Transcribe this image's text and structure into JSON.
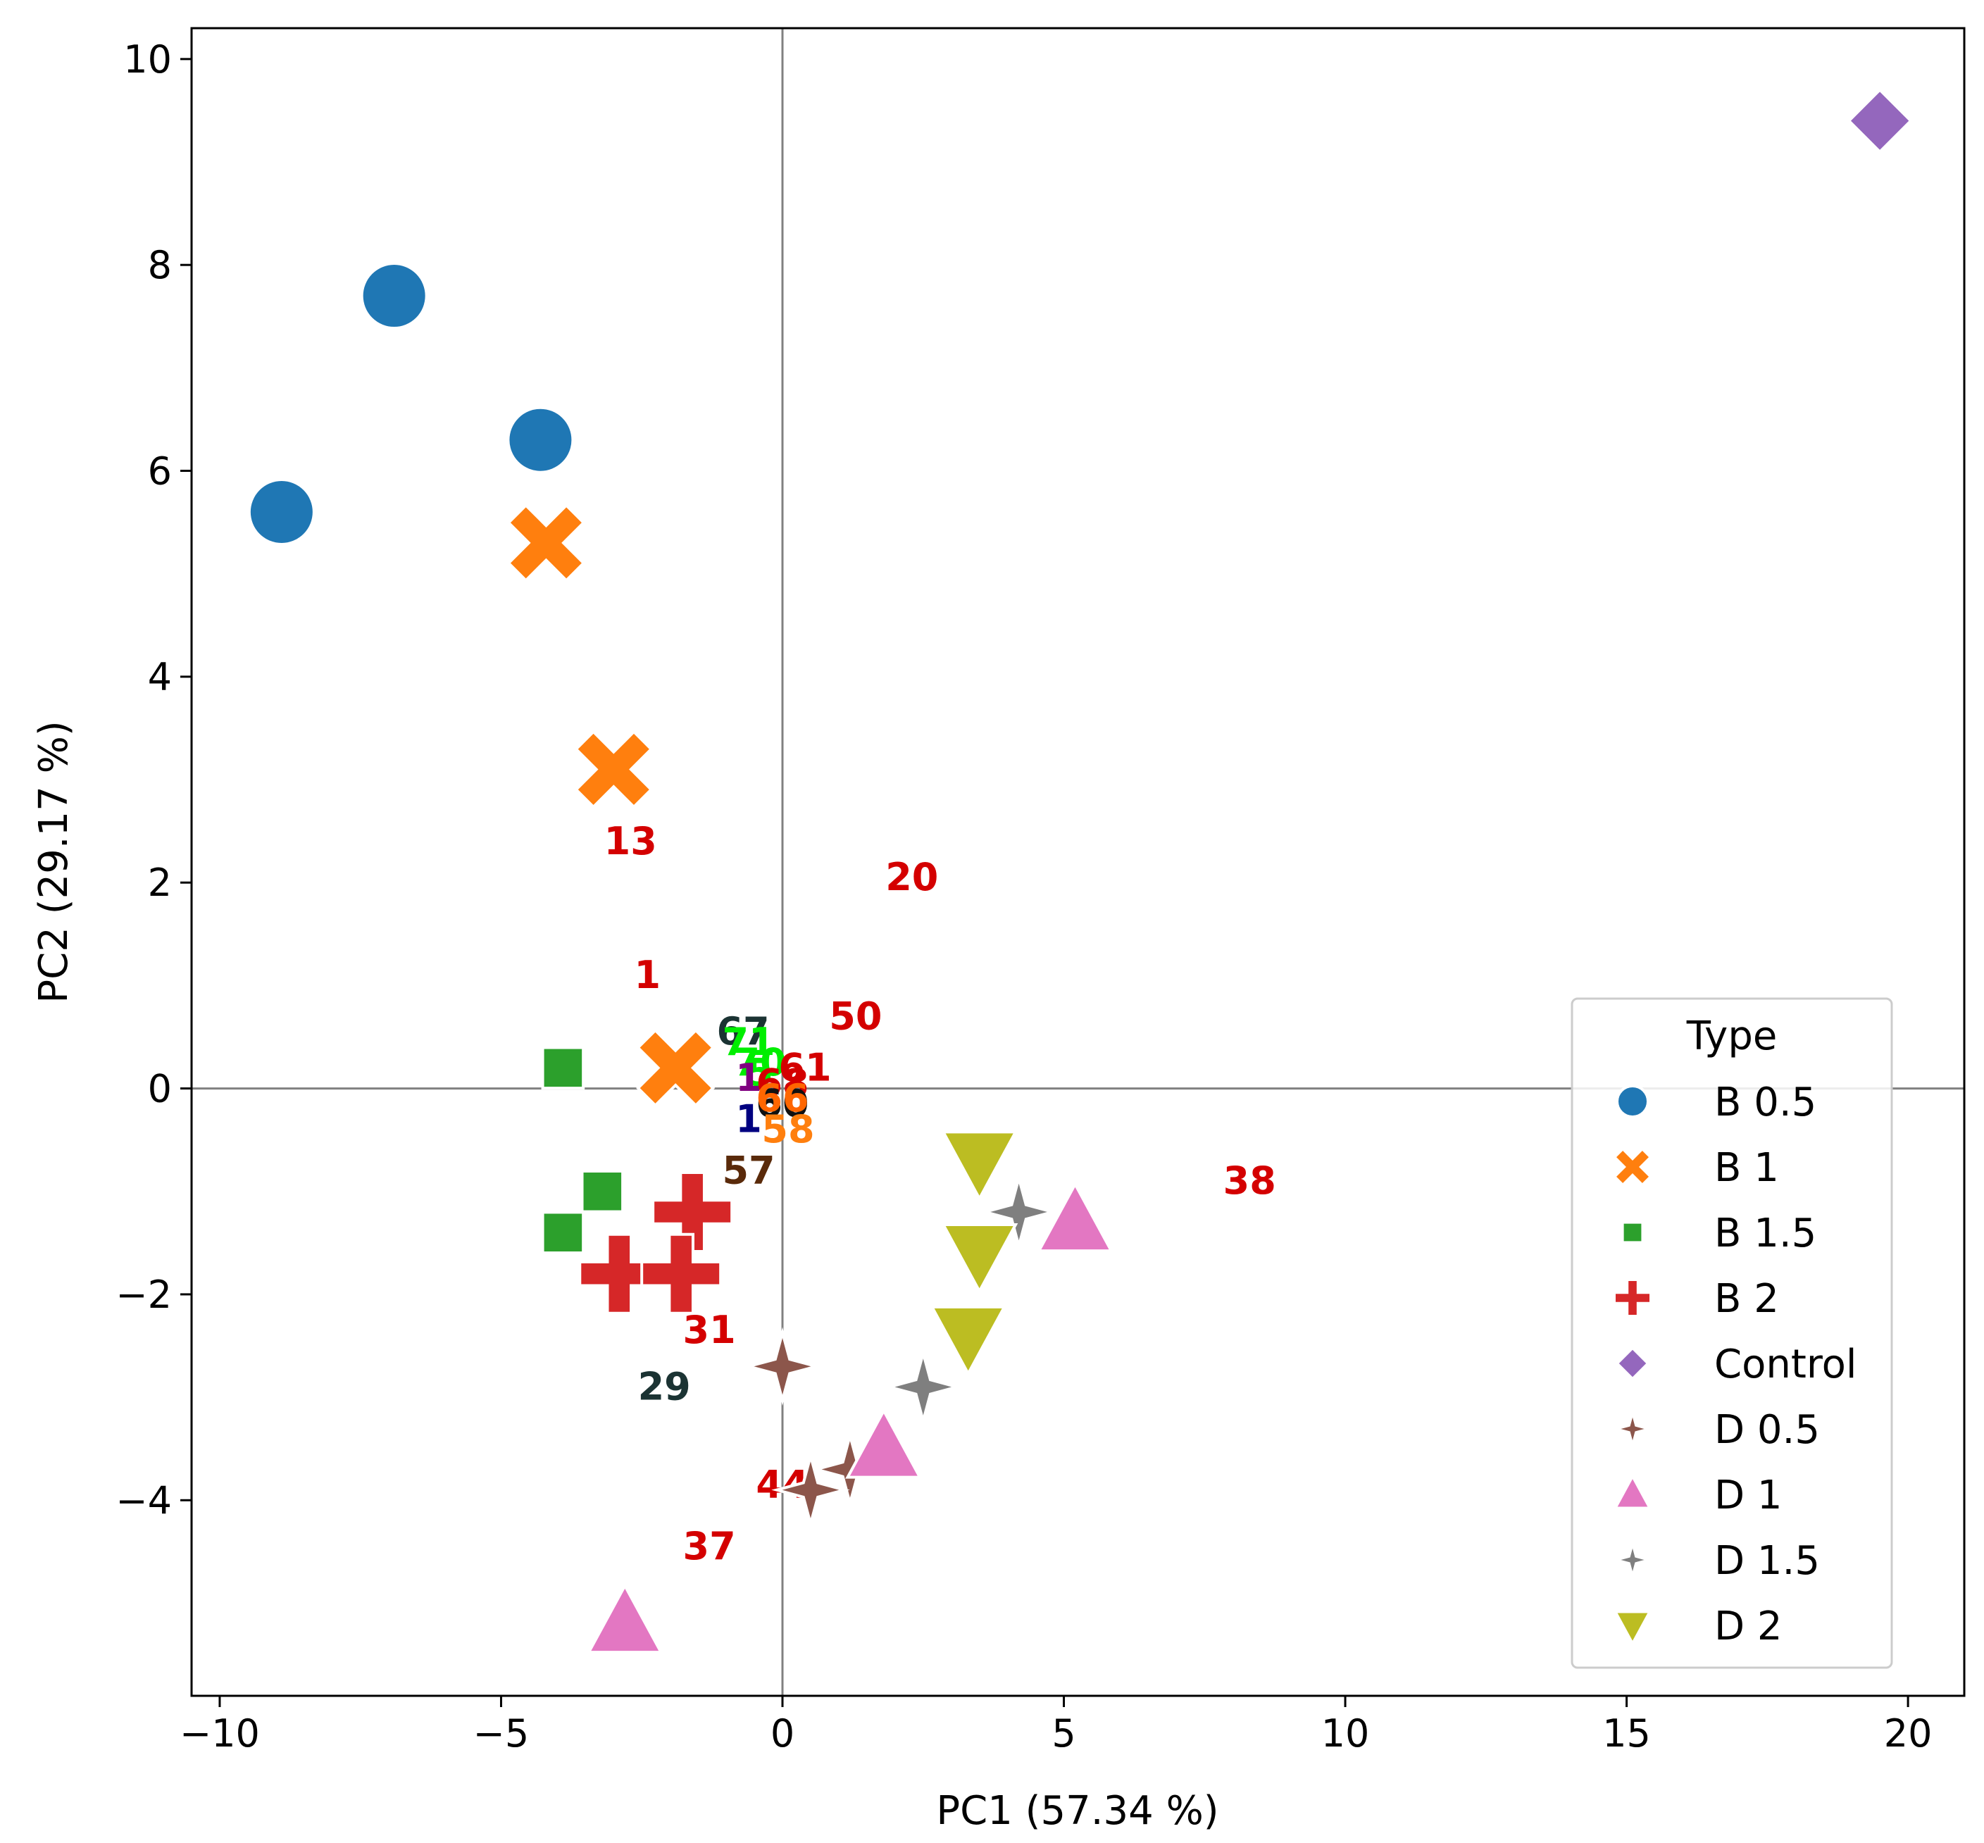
{
  "chart_data": {
    "type": "scatter",
    "xlabel": "PC1 (57.34 %)",
    "ylabel": "PC2 (29.17 %)",
    "xlim": [
      -10.5,
      21
    ],
    "ylim": [
      -5.9,
      10.3
    ],
    "xticks": [
      -10,
      -5,
      0,
      5,
      10,
      15,
      20
    ],
    "xtick_labels": [
      "−10",
      "−5",
      "0",
      "5",
      "10",
      "15",
      "20"
    ],
    "yticks": [
      -4,
      -2,
      0,
      2,
      4,
      6,
      8,
      10
    ],
    "ytick_labels": [
      "−4",
      "−2",
      "0",
      "2",
      "4",
      "6",
      "8",
      "10"
    ],
    "reference_lines": {
      "x": 0,
      "y": 0
    },
    "legend": {
      "title": "Type",
      "position": "lower-right"
    },
    "series": [
      {
        "name": "B 0.5",
        "marker": "circle",
        "color": "#1f77b4",
        "points": [
          [
            -8.9,
            5.6
          ],
          [
            -6.9,
            7.7
          ],
          [
            -4.3,
            6.3
          ]
        ]
      },
      {
        "name": "B 1",
        "marker": "x",
        "color": "#ff7f0e",
        "points": [
          [
            -4.2,
            5.3
          ],
          [
            -3.0,
            3.1
          ],
          [
            -1.9,
            0.2
          ]
        ]
      },
      {
        "name": "B 1.5",
        "marker": "square",
        "color": "#2ca02c",
        "points": [
          [
            -3.9,
            0.2
          ],
          [
            -3.2,
            -1.0
          ],
          [
            -3.9,
            -1.4
          ]
        ]
      },
      {
        "name": "B 2",
        "marker": "plus",
        "color": "#d62728",
        "points": [
          [
            -1.6,
            -1.2
          ],
          [
            -2.9,
            -1.8
          ],
          [
            -1.8,
            -1.8
          ]
        ]
      },
      {
        "name": "Control",
        "marker": "diamond",
        "color": "#9467bd",
        "points": [
          [
            19.5,
            9.4
          ]
        ]
      },
      {
        "name": "D 0.5",
        "marker": "star4",
        "color": "#8c564b",
        "points": [
          [
            0.0,
            -2.7
          ],
          [
            1.2,
            -3.7
          ],
          [
            0.5,
            -3.9
          ]
        ]
      },
      {
        "name": "D 1",
        "marker": "triangle-up",
        "color": "#e377c2",
        "points": [
          [
            5.2,
            -1.3
          ],
          [
            1.8,
            -3.5
          ],
          [
            -2.8,
            -5.2
          ]
        ]
      },
      {
        "name": "D 1.5",
        "marker": "star4",
        "color": "#7f7f7f",
        "points": [
          [
            4.2,
            -1.2
          ],
          [
            2.5,
            -2.9
          ]
        ]
      },
      {
        "name": "D 2",
        "marker": "triangle-down",
        "color": "#bcbd22",
        "points": [
          [
            3.5,
            -0.7
          ],
          [
            3.5,
            -1.6
          ],
          [
            3.3,
            -2.4
          ]
        ]
      }
    ],
    "annotations": [
      {
        "text": "13",
        "x": -2.7,
        "y": 4.8,
        "color": "#d40000"
      },
      {
        "text": "20",
        "x": 2.3,
        "y": 4.1,
        "color": "#d40000"
      },
      {
        "text": "1",
        "x": -2.4,
        "y": 2.2,
        "color": "#d40000"
      },
      {
        "text": "50",
        "x": 1.3,
        "y": 1.4,
        "color": "#d40000"
      },
      {
        "text": "67",
        "x": -0.7,
        "y": 1.1,
        "color": "#1b3333"
      },
      {
        "text": "71",
        "x": -0.6,
        "y": 0.9,
        "color": "#00ee00"
      },
      {
        "text": "70",
        "x": -0.4,
        "y": 0.5,
        "color": "#00ee00"
      },
      {
        "text": "61",
        "x": 0.4,
        "y": 0.4,
        "color": "#d40000"
      },
      {
        "text": "5",
        "x": -0.4,
        "y": 0.3,
        "color": "#00ee00"
      },
      {
        "text": "1",
        "x": -0.6,
        "y": 0.2,
        "color": "#800080"
      },
      {
        "text": "68",
        "x": 0.0,
        "y": 0.1,
        "color": "#d40000"
      },
      {
        "text": "60",
        "x": 0.0,
        "y": -0.3,
        "color": "#111111"
      },
      {
        "text": "66",
        "x": 0.0,
        "y": -0.2,
        "color": "#ff6600"
      },
      {
        "text": "1",
        "x": -0.6,
        "y": -0.6,
        "color": "#000080"
      },
      {
        "text": "58",
        "x": 0.1,
        "y": -0.8,
        "color": "#ff7f0e"
      },
      {
        "text": "57",
        "x": -0.6,
        "y": -1.6,
        "color": "#5a2a0a"
      },
      {
        "text": "38",
        "x": 8.3,
        "y": -1.8,
        "color": "#d40000"
      },
      {
        "text": "31",
        "x": -1.3,
        "y": -4.7,
        "color": "#d40000"
      },
      {
        "text": "29",
        "x": -2.1,
        "y": -5.8,
        "color": "#1b3333"
      },
      {
        "text": "44",
        "x": 0.0,
        "y": -7.7,
        "color": "#d40000"
      },
      {
        "text": "37",
        "x": -1.3,
        "y": -8.9,
        "color": "#d40000"
      }
    ]
  }
}
